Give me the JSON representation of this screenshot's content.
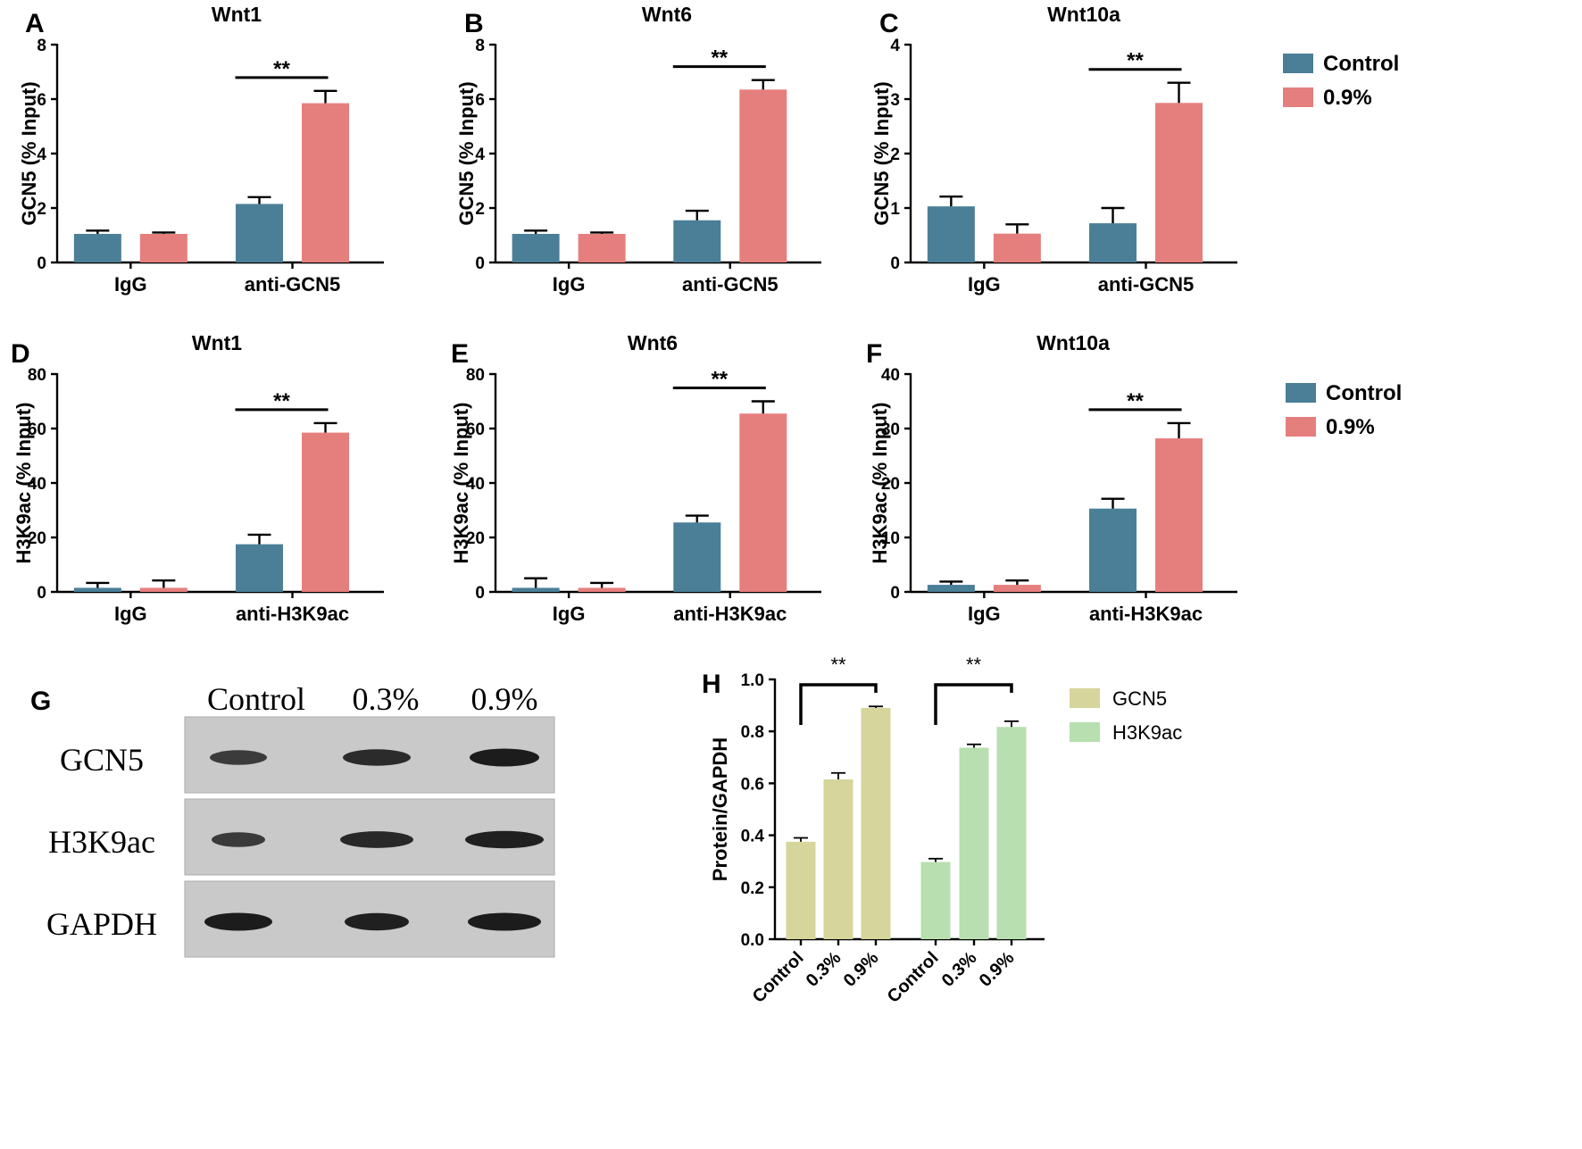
{
  "colors": {
    "control": "#4a7f97",
    "treated": "#e57f7e",
    "gcn5_wb": "#d6d59c",
    "h3k9ac_wb": "#b7dfaf",
    "axis": "#000000",
    "blot_bg": "#c9c9c9",
    "band": "#1c1c1c"
  },
  "legend_top": {
    "items": [
      {
        "label": "Control",
        "color_key": "control"
      },
      {
        "label": "0.9%",
        "color_key": "treated"
      }
    ]
  },
  "legend_mid": {
    "items": [
      {
        "label": "Control",
        "color_key": "control"
      },
      {
        "label": "0.9%",
        "color_key": "treated"
      }
    ]
  },
  "chart_data": [
    {
      "panel": "A",
      "type": "bar",
      "title": "Wnt1",
      "ylabel": "GCN5 (% Input)",
      "ylim": [
        0,
        8
      ],
      "yticks": [
        0,
        2,
        4,
        6,
        8
      ],
      "categories": [
        "IgG",
        "anti-GCN5"
      ],
      "series": [
        {
          "name": "Control",
          "color_key": "control",
          "values": [
            1.05,
            2.15
          ],
          "errors": [
            0.12,
            0.25
          ]
        },
        {
          "name": "0.9%",
          "color_key": "treated",
          "values": [
            1.05,
            5.85
          ],
          "errors": [
            0.05,
            0.45
          ]
        }
      ],
      "significance": {
        "category_index": 1,
        "label": "**"
      }
    },
    {
      "panel": "B",
      "type": "bar",
      "title": "Wnt6",
      "ylabel": "GCN5 (% Input)",
      "ylim": [
        0,
        8
      ],
      "yticks": [
        0,
        2,
        4,
        6,
        8
      ],
      "categories": [
        "IgG",
        "anti-GCN5"
      ],
      "series": [
        {
          "name": "Control",
          "color_key": "control",
          "values": [
            1.05,
            1.55
          ],
          "errors": [
            0.12,
            0.35
          ]
        },
        {
          "name": "0.9%",
          "color_key": "treated",
          "values": [
            1.05,
            6.35
          ],
          "errors": [
            0.05,
            0.35
          ]
        }
      ],
      "significance": {
        "category_index": 1,
        "label": "**"
      }
    },
    {
      "panel": "C",
      "type": "bar",
      "title": "Wnt10a",
      "ylabel": "GCN5 (% Input)",
      "ylim": [
        0,
        4
      ],
      "yticks": [
        0,
        1,
        2,
        3,
        4
      ],
      "categories": [
        "IgG",
        "anti-GCN5"
      ],
      "series": [
        {
          "name": "Control",
          "color_key": "control",
          "values": [
            1.03,
            0.72
          ],
          "errors": [
            0.18,
            0.28
          ]
        },
        {
          "name": "0.9%",
          "color_key": "treated",
          "values": [
            0.53,
            2.93
          ],
          "errors": [
            0.17,
            0.37
          ]
        }
      ],
      "significance": {
        "category_index": 1,
        "label": "**"
      }
    },
    {
      "panel": "D",
      "type": "bar",
      "title": "Wnt1",
      "ylabel": "H3K9ac (% Input)",
      "ylim": [
        0,
        80
      ],
      "yticks": [
        0,
        20,
        40,
        60,
        80
      ],
      "categories": [
        "IgG",
        "anti-H3K9ac"
      ],
      "series": [
        {
          "name": "Control",
          "color_key": "control",
          "values": [
            1.5,
            17.5
          ],
          "errors": [
            1.8,
            3.5
          ]
        },
        {
          "name": "0.9%",
          "color_key": "treated",
          "values": [
            1.5,
            58.5
          ],
          "errors": [
            2.7,
            3.5
          ]
        }
      ],
      "significance": {
        "category_index": 1,
        "label": "**"
      }
    },
    {
      "panel": "E",
      "type": "bar",
      "title": "Wnt6",
      "ylabel": "H3K9ac (% Input)",
      "ylim": [
        0,
        80
      ],
      "yticks": [
        0,
        20,
        40,
        60,
        80
      ],
      "categories": [
        "IgG",
        "anti-H3K9ac"
      ],
      "series": [
        {
          "name": "Control",
          "color_key": "control",
          "values": [
            1.5,
            25.5
          ],
          "errors": [
            3.5,
            2.5
          ]
        },
        {
          "name": "0.9%",
          "color_key": "treated",
          "values": [
            1.5,
            65.5
          ],
          "errors": [
            1.8,
            4.5
          ]
        }
      ],
      "significance": {
        "category_index": 1,
        "label": "**"
      }
    },
    {
      "panel": "F",
      "type": "bar",
      "title": "Wnt10a",
      "ylabel": "H3K9ac (% Input)",
      "ylim": [
        0,
        40
      ],
      "yticks": [
        0,
        10,
        20,
        30,
        40
      ],
      "categories": [
        "IgG",
        "anti-H3K9ac"
      ],
      "series": [
        {
          "name": "Control",
          "color_key": "control",
          "values": [
            1.3,
            15.3
          ],
          "errors": [
            0.6,
            1.8
          ]
        },
        {
          "name": "0.9%",
          "color_key": "treated",
          "values": [
            1.3,
            28.2
          ],
          "errors": [
            0.8,
            2.8
          ]
        }
      ],
      "significance": {
        "category_index": 1,
        "label": "**"
      }
    },
    {
      "panel": "H",
      "type": "bar",
      "title": "",
      "ylabel": "Protein/GAPDH",
      "ylim": [
        0,
        1.0
      ],
      "yticks": [
        "0.0",
        "0.2",
        "0.4",
        "0.6",
        "0.8",
        "1.0"
      ],
      "legend": [
        {
          "label": "GCN5",
          "color_key": "gcn5_wb"
        },
        {
          "label": "H3K9ac",
          "color_key": "h3k9ac_wb"
        }
      ],
      "groups": [
        {
          "name": "GCN5",
          "color_key": "gcn5_wb",
          "categories": [
            "Control",
            "0.3%",
            "0.9%"
          ],
          "values": [
            0.375,
            0.615,
            0.89
          ],
          "errors": [
            0.015,
            0.025,
            0.006
          ],
          "significance": "**"
        },
        {
          "name": "H3K9ac",
          "color_key": "h3k9ac_wb",
          "categories": [
            "Control",
            "0.3%",
            "0.9%"
          ],
          "values": [
            0.297,
            0.737,
            0.817
          ],
          "errors": [
            0.013,
            0.013,
            0.022
          ],
          "significance": "**"
        }
      ]
    }
  ],
  "western_blot": {
    "panel": "G",
    "lane_labels": [
      "Control",
      "0.3%",
      "0.9%"
    ],
    "rows": [
      {
        "label": "GCN5",
        "intensities": [
          0.6,
          0.82,
          1.0
        ]
      },
      {
        "label": "H3K9ac",
        "intensities": [
          0.62,
          0.85,
          0.95
        ]
      },
      {
        "label": "GAPDH",
        "intensities": [
          1.0,
          0.95,
          1.0
        ]
      }
    ]
  }
}
